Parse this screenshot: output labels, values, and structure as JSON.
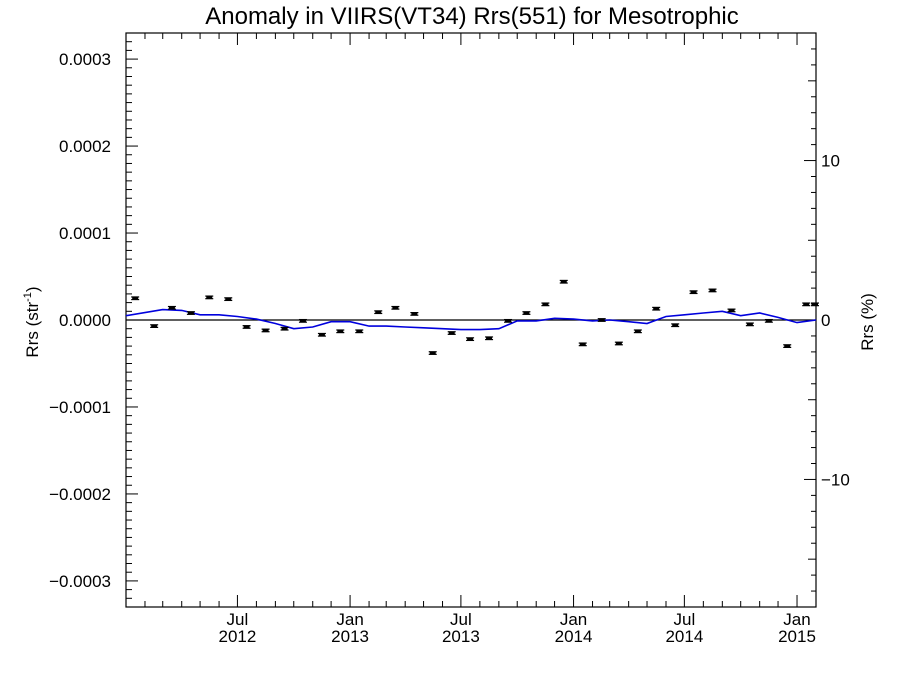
{
  "chart_data": {
    "type": "scatter",
    "title": "Anomaly in VIIRS(VT34) Rrs(551) for Mesotrophic",
    "ylabel": "Rrs (str",
    "ylabel_sup": "-1",
    "ylabel_close": ")",
    "y2label": "Rrs (%)",
    "ylim": [
      -0.00033,
      0.00033
    ],
    "y2lim": [
      -18,
      18
    ],
    "yticks": [
      -0.0003,
      -0.0002,
      -0.0001,
      0.0,
      0.0001,
      0.0002,
      0.0003
    ],
    "ytick_labels": [
      "−0.0003",
      "−0.0002",
      "−0.0001",
      "0.0000",
      "0.0001",
      "0.0002",
      "0.0003"
    ],
    "y2ticks": [
      -10,
      0,
      10
    ],
    "y2tick_labels": [
      "−10",
      "0",
      "10"
    ],
    "xlim": [
      "2012-01-01",
      "2015-02-01"
    ],
    "xticks": [
      {
        "date": "2012-07-01",
        "month": "Jul",
        "year": "2012"
      },
      {
        "date": "2013-01-01",
        "month": "Jan",
        "year": "2013"
      },
      {
        "date": "2013-07-01",
        "month": "Jul",
        "year": "2013"
      },
      {
        "date": "2014-01-01",
        "month": "Jan",
        "year": "2014"
      },
      {
        "date": "2014-07-01",
        "month": "Jul",
        "year": "2014"
      },
      {
        "date": "2015-01-01",
        "month": "Jan",
        "year": "2015"
      }
    ],
    "grid": false,
    "series": [
      {
        "kind": "points-with-errorbars",
        "color": "#000000",
        "x": [
          "2012-01-16",
          "2012-02-16",
          "2012-03-16",
          "2012-04-16",
          "2012-05-16",
          "2012-06-16",
          "2012-07-16",
          "2012-08-16",
          "2012-09-16",
          "2012-10-16",
          "2012-11-16",
          "2012-12-16",
          "2013-01-16",
          "2013-02-16",
          "2013-03-16",
          "2013-04-16",
          "2013-05-16",
          "2013-06-16",
          "2013-07-16",
          "2013-08-16",
          "2013-09-16",
          "2013-10-16",
          "2013-11-16",
          "2013-12-16",
          "2014-01-16",
          "2014-02-16",
          "2014-03-16",
          "2014-04-16",
          "2014-05-16",
          "2014-06-16",
          "2014-07-16",
          "2014-08-16",
          "2014-09-16",
          "2014-10-16",
          "2014-11-16",
          "2014-12-16",
          "2015-01-16",
          "2015-02-01"
        ],
        "values": [
          2.5e-05,
          -7e-06,
          1.4e-05,
          8e-06,
          2.6e-05,
          2.4e-05,
          -8e-06,
          -1.2e-05,
          -1e-05,
          -1e-06,
          -1.7e-05,
          -1.3e-05,
          -1.3e-05,
          9e-06,
          1.4e-05,
          7e-06,
          -3.8e-05,
          -1.5e-05,
          -2.2e-05,
          -2.1e-05,
          -1e-06,
          8e-06,
          1.8e-05,
          4.4e-05,
          -2.8e-05,
          0.0,
          -2.7e-05,
          -1.3e-05,
          1.3e-05,
          -6e-06,
          3.2e-05,
          3.4e-05,
          1.1e-05,
          -5e-06,
          -1e-06,
          -3e-05,
          1.8e-05,
          1.8e-05
        ],
        "error": 1.5e-06
      },
      {
        "kind": "line",
        "color": "#0000dd",
        "x": [
          "2012-01-01",
          "2012-03-01",
          "2012-04-01",
          "2012-05-01",
          "2012-06-01",
          "2012-07-01",
          "2012-08-01",
          "2012-09-01",
          "2012-10-01",
          "2012-11-01",
          "2012-12-01",
          "2013-01-01",
          "2013-02-01",
          "2013-03-01",
          "2013-04-01",
          "2013-05-01",
          "2013-06-01",
          "2013-07-01",
          "2013-08-01",
          "2013-09-01",
          "2013-10-01",
          "2013-11-01",
          "2013-12-01",
          "2014-01-01",
          "2014-02-01",
          "2014-03-01",
          "2014-04-01",
          "2014-05-01",
          "2014-06-01",
          "2014-07-01",
          "2014-08-01",
          "2014-09-01",
          "2014-10-01",
          "2014-11-01",
          "2014-12-01",
          "2015-01-01",
          "2015-02-01"
        ],
        "values": [
          5e-06,
          1.2e-05,
          1.1e-05,
          6e-06,
          6e-06,
          4e-06,
          1e-06,
          -4e-06,
          -1e-05,
          -8e-06,
          -2e-06,
          -2e-06,
          -7e-06,
          -7e-06,
          -8e-06,
          -9e-06,
          -1e-05,
          -1.1e-05,
          -1.1e-05,
          -1e-05,
          -1e-06,
          -1e-06,
          2e-06,
          1e-06,
          -1e-06,
          0.0,
          -2e-06,
          -4e-06,
          4e-06,
          6e-06,
          8e-06,
          1e-05,
          5e-06,
          8e-06,
          3e-06,
          -3e-06,
          0.0
        ]
      }
    ],
    "zero_line": 0
  }
}
